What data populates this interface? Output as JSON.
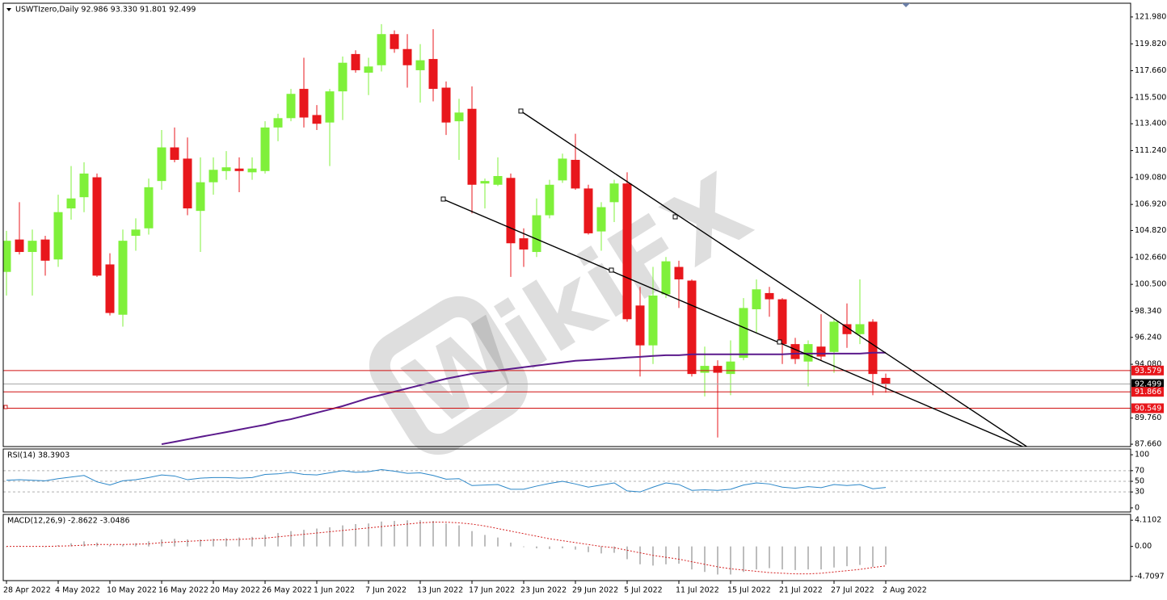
{
  "chart_data": [
    {
      "type": "candlestick",
      "title": "USWTIzero,Daily  92.986 93.330 91.801 92.499",
      "categories": [
        "28 Apr 2022",
        null,
        null,
        null,
        "4 May 2022",
        null,
        null,
        null,
        "10 May 2022",
        null,
        null,
        null,
        "16 May 2022",
        null,
        null,
        null,
        "20 May 2022",
        null,
        null,
        null,
        "26 May 2022",
        null,
        null,
        null,
        "1 Jun 2022",
        null,
        null,
        null,
        "7 Jun 2022",
        null,
        null,
        null,
        "13 Jun 2022",
        null,
        null,
        null,
        "17 Jun 2022",
        null,
        null,
        null,
        "23 Jun 2022",
        null,
        null,
        null,
        "29 Jun 2022",
        null,
        null,
        null,
        "5 Jul 2022",
        null,
        null,
        null,
        "11 Jul 2022",
        null,
        null,
        null,
        "15 Jul 2022",
        null,
        null,
        null,
        "21 Jul 2022",
        null,
        null,
        null,
        "27 Jul 2022",
        null,
        null,
        null,
        "2 Aug 2022"
      ],
      "open": [
        101.5,
        104.1,
        103.1,
        104.1,
        102.5,
        106.6,
        107.5,
        109.1,
        102.1,
        98.06,
        104.4,
        105.0,
        108.8,
        111.5,
        110.6,
        106.4,
        108.7,
        109.6,
        109.8,
        109.5,
        109.6,
        113.1,
        113.85,
        116.2,
        114.1,
        113.5,
        116.0,
        119.0,
        117.5,
        118.1,
        120.6,
        119.4,
        117.7,
        118.6,
        116.3,
        113.6,
        114.6,
        108.6,
        108.5,
        109.05,
        104.2,
        103.1,
        106.05,
        108.85,
        110.5,
        108.2,
        104.75,
        107.1,
        108.6,
        98.8,
        95.6,
        99.7,
        101.9,
        100.8,
        93.4,
        93.95,
        93.3,
        94.6,
        98.5,
        99.8,
        99.3,
        95.7,
        94.3,
        95.5,
        95.07,
        97.3,
        96.5,
        97.5,
        92.986
      ],
      "high": [
        104.8,
        107.1,
        104.9,
        104.4,
        107.7,
        110.0,
        110.3,
        109.4,
        103.0,
        104.9,
        105.8,
        109.0,
        112.9,
        113.1,
        112.3,
        110.7,
        110.7,
        111.2,
        110.7,
        110.7,
        113.6,
        114.2,
        116.2,
        118.7,
        114.9,
        116.2,
        118.8,
        119.3,
        118.7,
        121.4,
        120.9,
        120.6,
        119.8,
        121.0,
        116.8,
        115.4,
        116.4,
        109.0,
        110.7,
        109.4,
        105.0,
        107.4,
        108.9,
        111.0,
        112.6,
        108.5,
        107.1,
        108.9,
        109.5,
        100.3,
        101.9,
        102.7,
        102.4,
        100.9,
        95.5,
        94.4,
        96.0,
        99.4,
        100.9,
        100.3,
        99.4,
        96.2,
        96.0,
        98.1,
        97.7,
        98.97,
        100.9,
        97.7,
        93.33
      ],
      "low": [
        99.6,
        102.9,
        99.6,
        101.2,
        101.9,
        105.7,
        106.3,
        101.1,
        98.0,
        97.1,
        103.2,
        104.5,
        108.1,
        110.3,
        106.05,
        103.1,
        107.7,
        108.9,
        107.9,
        108.9,
        109.4,
        112.0,
        113.6,
        113.1,
        112.9,
        110.0,
        113.7,
        117.5,
        115.7,
        117.6,
        119.1,
        116.3,
        115.1,
        115.2,
        112.5,
        110.5,
        106.2,
        106.6,
        108.4,
        101.1,
        101.9,
        102.7,
        105.8,
        108.65,
        108.1,
        104.5,
        103.2,
        105.5,
        97.5,
        93.1,
        94.1,
        99.4,
        98.6,
        93.1,
        91.5,
        88.2,
        91.6,
        94.4,
        96.6,
        97.9,
        94.1,
        94.1,
        92.3,
        94.4,
        93.4,
        95.4,
        95.7,
        91.6,
        91.801
      ],
      "close": [
        104.0,
        103.1,
        104.0,
        102.4,
        106.3,
        107.4,
        109.4,
        101.2,
        98.2,
        104.0,
        104.9,
        108.3,
        111.5,
        110.5,
        106.6,
        108.7,
        109.7,
        109.9,
        109.6,
        109.8,
        113.1,
        113.85,
        115.8,
        113.9,
        113.4,
        116.0,
        118.3,
        117.7,
        118.0,
        120.6,
        119.4,
        118.1,
        118.5,
        116.2,
        113.5,
        114.3,
        108.5,
        108.8,
        109.2,
        103.8,
        103.3,
        106.05,
        108.5,
        110.6,
        108.2,
        104.6,
        106.7,
        108.6,
        97.7,
        95.6,
        99.6,
        102.35,
        100.9,
        93.3,
        93.95,
        93.4,
        94.3,
        98.6,
        100.1,
        99.3,
        95.7,
        94.5,
        95.7,
        94.7,
        97.5,
        96.5,
        97.3,
        93.3,
        92.499
      ],
      "up_color": "#7ff03a",
      "down_color": "#e8171c",
      "ma": {
        "color": "#5b1a8c",
        "values": [
          null,
          null,
          null,
          null,
          null,
          null,
          null,
          null,
          null,
          null,
          null,
          null,
          87.66,
          87.85,
          88.05,
          88.25,
          88.44,
          88.63,
          88.83,
          89.03,
          89.22,
          89.48,
          89.67,
          89.93,
          90.19,
          90.45,
          90.72,
          91.04,
          91.37,
          91.62,
          91.88,
          92.14,
          92.4,
          92.66,
          92.92,
          93.12,
          93.32,
          93.45,
          93.58,
          93.71,
          93.84,
          93.97,
          94.1,
          94.23,
          94.36,
          94.42,
          94.48,
          94.55,
          94.62,
          94.68,
          94.75,
          94.81,
          94.81,
          94.88,
          94.88,
          94.88,
          94.88,
          94.88,
          94.88,
          94.88,
          94.88,
          94.94,
          94.94,
          94.94,
          94.94,
          94.94,
          94.94,
          95.01,
          95.01
        ]
      },
      "hlines": [
        {
          "value": 93.579,
          "color": "#d01010",
          "label_color": "#e8171c"
        },
        {
          "value": 92.499,
          "color": "#a8a8a8",
          "label_color": "#000000"
        },
        {
          "value": 91.866,
          "color": "#d01010",
          "label_color": "#e8171c"
        },
        {
          "value": 90.549,
          "color": "#d01010",
          "label_color": "#e8171c"
        }
      ],
      "ylim": [
        87.47,
        123.08
      ],
      "yticks": [
        {
          "value": 121.98,
          "label": "121.980"
        },
        {
          "value": 119.82,
          "label": "119.820"
        },
        {
          "value": 117.66,
          "label": "117.660"
        },
        {
          "value": 115.5,
          "label": "115.500"
        },
        {
          "value": 113.4,
          "label": "113.400"
        },
        {
          "value": 111.24,
          "label": "111.240"
        },
        {
          "value": 109.08,
          "label": "109.080"
        },
        {
          "value": 106.92,
          "label": "106.920"
        },
        {
          "value": 104.82,
          "label": "104.820"
        },
        {
          "value": 102.66,
          "label": "102.660"
        },
        {
          "value": 100.5,
          "label": "100.500"
        },
        {
          "value": 98.34,
          "label": "98.340"
        },
        {
          "value": 96.24,
          "label": "96.240"
        },
        {
          "value": 94.08,
          "label": "94.080"
        },
        {
          "value": 89.76,
          "label": "89.760"
        },
        {
          "value": 87.66,
          "label": "87.660"
        }
      ]
    },
    {
      "type": "line",
      "title": "RSI(14) 38.3903",
      "color": "#2a86c8",
      "values": [
        52,
        53,
        52,
        51,
        55,
        58,
        61,
        49,
        43,
        51,
        53,
        57,
        62,
        60,
        53,
        56,
        57,
        57,
        56,
        57,
        63,
        64,
        67,
        63,
        62,
        66,
        70,
        67,
        68,
        72,
        69,
        65,
        66,
        61,
        54,
        55,
        42,
        43,
        44,
        35,
        35,
        41,
        46,
        50,
        45,
        39,
        43,
        47,
        32,
        30,
        39,
        47,
        44,
        33,
        34,
        33,
        35,
        43,
        47,
        45,
        39,
        37,
        40,
        38,
        44,
        42,
        44,
        36,
        38.3903
      ],
      "levels": [
        70,
        50,
        30
      ],
      "ylim": [
        -7.7,
        110.8
      ],
      "yticks": [
        100,
        70,
        50,
        30,
        0
      ]
    },
    {
      "type": "bar",
      "title": "MACD(12,26,9) -2.8622 -3.0486",
      "color": "#bdbdbd",
      "values": [
        -0.1,
        0.1,
        0.0,
        -0.1,
        0.2,
        0.5,
        0.8,
        0.6,
        0.2,
        0.3,
        0.5,
        0.8,
        1.1,
        1.2,
        1.1,
        1.1,
        1.2,
        1.3,
        1.4,
        1.5,
        1.8,
        2.1,
        2.4,
        2.6,
        2.8,
        3.0,
        3.3,
        3.5,
        3.6,
        3.9,
        4.0,
        4.1,
        4.1,
        4.0,
        3.6,
        3.3,
        2.4,
        1.8,
        1.4,
        0.6,
        -0.1,
        -0.3,
        -0.4,
        -0.3,
        -0.5,
        -0.9,
        -1.1,
        -1.0,
        -2.0,
        -2.8,
        -3.0,
        -2.8,
        -2.7,
        -3.6,
        -4.0,
        -4.4,
        -4.4,
        -4.0,
        -3.6,
        -3.4,
        -3.6,
        -3.7,
        -3.6,
        -3.6,
        -3.3,
        -3.1,
        -2.9,
        -3.2,
        -2.8622
      ],
      "signal": {
        "color": "#d42020",
        "values": [
          0.0,
          0.0,
          0.0,
          0.0,
          0.05,
          0.1,
          0.2,
          0.3,
          0.3,
          0.3,
          0.35,
          0.4,
          0.6,
          0.7,
          0.8,
          0.9,
          1.0,
          1.05,
          1.1,
          1.2,
          1.3,
          1.5,
          1.7,
          1.9,
          2.1,
          2.3,
          2.5,
          2.7,
          2.9,
          3.1,
          3.3,
          3.5,
          3.7,
          3.8,
          3.8,
          3.7,
          3.5,
          3.2,
          2.8,
          2.4,
          2.0,
          1.6,
          1.2,
          0.9,
          0.6,
          0.3,
          0.0,
          -0.2,
          -0.6,
          -1.0,
          -1.4,
          -1.7,
          -2.0,
          -2.4,
          -2.8,
          -3.2,
          -3.5,
          -3.7,
          -3.9,
          -4.1,
          -4.2,
          -4.3,
          -4.3,
          -4.2,
          -4.0,
          -3.8,
          -3.6,
          -3.3,
          -3.0486
        ]
      },
      "ylim": [
        -5.358,
        5.018
      ],
      "yticks": [
        4.1102,
        {
          "value": 0,
          "label": "0.00"
        },
        -4.7097
      ]
    }
  ],
  "watermark": "WikiFX"
}
